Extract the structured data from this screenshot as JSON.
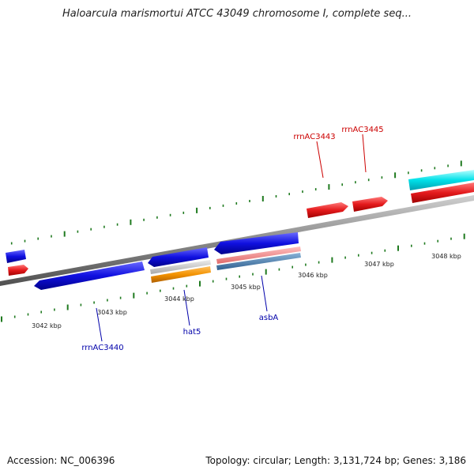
{
  "title": "Haloarcula marismortui ATCC 43049 chromosome I, complete seq...",
  "accession": "Accession: NC_006396",
  "summary": "Topology: circular; Length: 3,131,724 bp; Genes: 3,186",
  "colors": {
    "backbone": "#8a8a8a",
    "tick": "#1f7a1f",
    "gene_forward": "#e41a1c",
    "gene_reverse": "#1010e0",
    "label_forward": "#cc0000",
    "label_reverse": "#0000aa",
    "orange": "#f39200",
    "cyan": "#00e0e8",
    "pink": "#f08080",
    "steel": "#4682b4",
    "grey": "#c0c0c0"
  },
  "scale_labels": {
    "kbp_3042": "3042 kbp",
    "kbp_3043": "3043 kbp",
    "kbp_3044": "3044 kbp",
    "kbp_3045": "3045 kbp",
    "kbp_3046": "3046 kbp",
    "kbp_3047": "3047 kbp",
    "kbp_3048": "3048 kbp"
  },
  "gene_labels": {
    "rrnAC3440": "rrnAC3440",
    "hat5": "hat5",
    "asbA": "asbA",
    "rrnAC3443": "rrnAC3443",
    "rrnAC3445": "rrnAC3445"
  }
}
